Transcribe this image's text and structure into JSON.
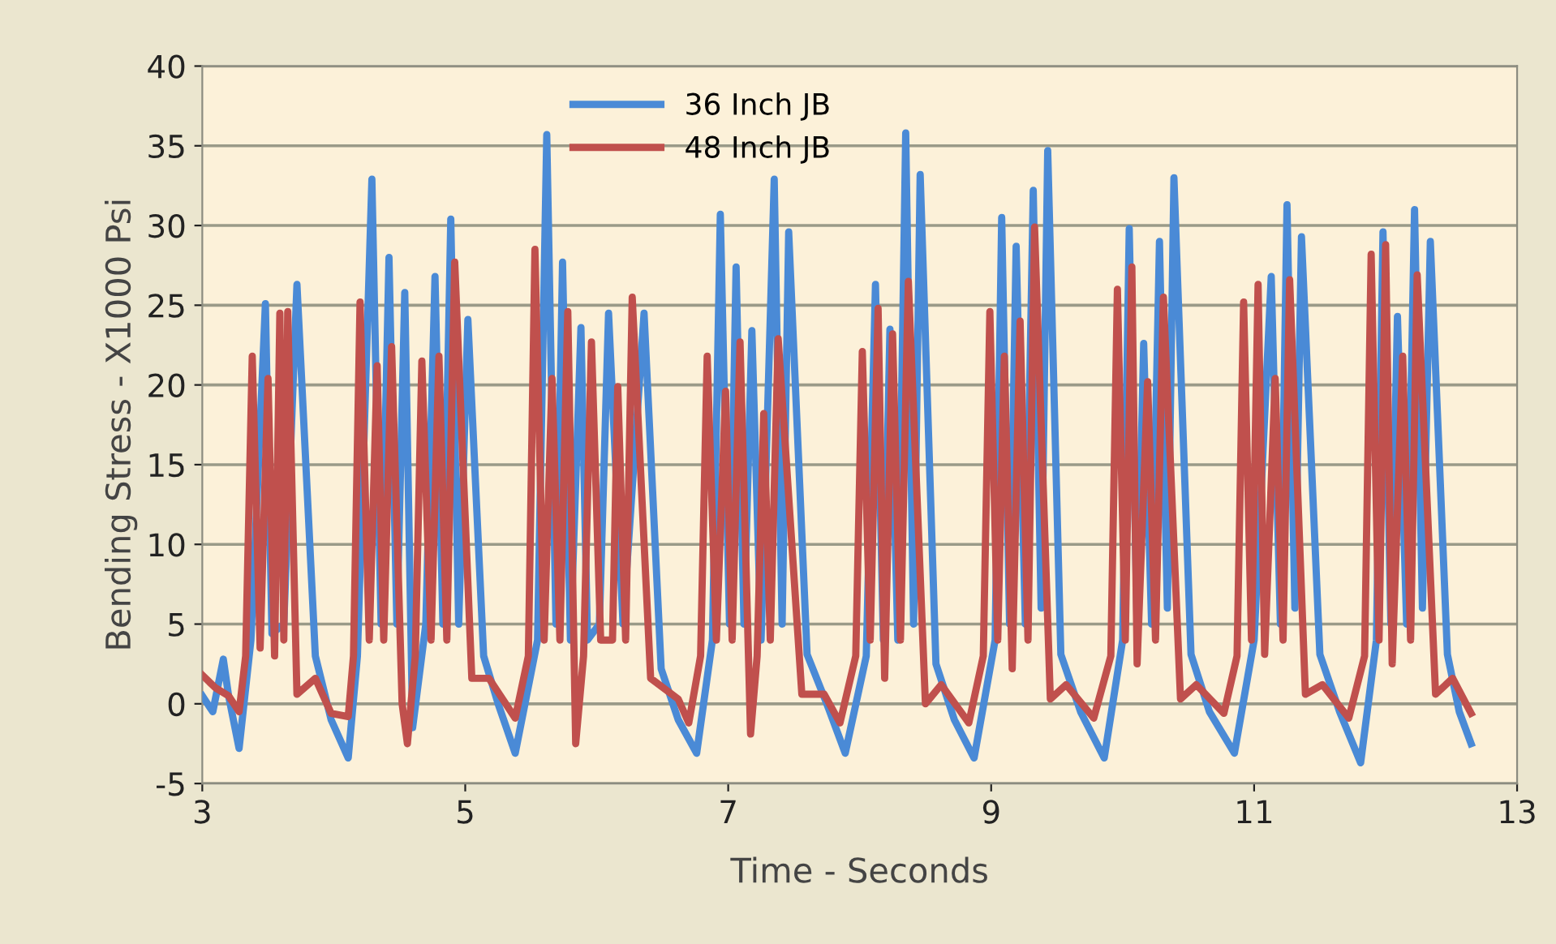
{
  "chart_data": {
    "type": "line",
    "xlabel": "Time - Seconds",
    "ylabel": "Bending Stress - X1000 Psi",
    "xlim": [
      3,
      13
    ],
    "xticks": [
      3,
      5,
      7,
      9,
      11,
      13
    ],
    "ylim": [
      -5,
      40
    ],
    "yticks": [
      -5,
      0,
      5,
      10,
      15,
      20,
      25,
      30,
      35,
      40
    ],
    "grid": "y",
    "legend": "top",
    "line_style": "solid",
    "marker": "none",
    "series": [
      {
        "name": "36 Inch JB",
        "color": "#4a8ad6",
        "x": [
          3.0,
          3.08,
          3.16,
          3.2,
          3.28,
          3.37,
          3.48,
          3.53,
          3.62,
          3.72,
          3.86,
          3.98,
          4.11,
          4.18,
          4.29,
          4.36,
          4.42,
          4.48,
          4.54,
          4.6,
          4.7,
          4.77,
          4.83,
          4.89,
          4.95,
          5.02,
          5.14,
          5.25,
          5.38,
          5.55,
          5.62,
          5.69,
          5.74,
          5.8,
          5.88,
          5.93,
          6.02,
          6.09,
          6.2,
          6.36,
          6.49,
          6.62,
          6.76,
          6.88,
          6.94,
          7.01,
          7.06,
          7.12,
          7.18,
          7.25,
          7.35,
          7.41,
          7.46,
          7.6,
          7.75,
          7.89,
          8.05,
          8.12,
          8.18,
          8.23,
          8.29,
          8.35,
          8.41,
          8.46,
          8.58,
          8.72,
          8.87,
          9.03,
          9.08,
          9.14,
          9.19,
          9.26,
          9.32,
          9.38,
          9.43,
          9.53,
          9.68,
          9.86,
          10.0,
          10.05,
          10.11,
          10.16,
          10.22,
          10.28,
          10.34,
          10.39,
          10.52,
          10.66,
          10.85,
          11.0,
          11.13,
          11.2,
          11.25,
          11.31,
          11.36,
          11.5,
          11.65,
          11.81,
          11.93,
          11.98,
          12.04,
          12.09,
          12.16,
          12.22,
          12.28,
          12.34,
          12.47,
          12.56,
          12.65
        ],
        "values": [
          0.5,
          -0.5,
          2.8,
          0.5,
          -2.8,
          4,
          25.1,
          4.4,
          5,
          26.3,
          3,
          -1,
          -3.4,
          3,
          32.9,
          5,
          28.0,
          5,
          25.8,
          -1.5,
          5,
          26.8,
          5,
          30.4,
          5,
          24.1,
          3,
          0,
          -3.1,
          4,
          35.7,
          5,
          27.7,
          4,
          23.6,
          4,
          5,
          24.5,
          5,
          24.5,
          2.2,
          -1,
          -3.1,
          4,
          30.7,
          5,
          27.4,
          5,
          23.4,
          4,
          32.9,
          5,
          29.6,
          3.1,
          0,
          -3.1,
          3,
          26.3,
          4,
          23.5,
          4,
          35.8,
          5,
          33.2,
          2.5,
          -1,
          -3.4,
          4,
          30.5,
          5,
          28.7,
          5,
          32.2,
          6,
          34.7,
          3.1,
          -0.5,
          -3.4,
          4,
          29.8,
          5,
          22.6,
          5,
          29.0,
          6,
          33.0,
          3.1,
          -0.5,
          -3.1,
          4,
          26.8,
          5,
          31.3,
          6,
          29.3,
          3.1,
          -0.5,
          -3.7,
          4,
          29.6,
          5,
          24.3,
          5,
          31.0,
          6,
          29.0,
          3.1,
          -0.5,
          -2.5
        ]
      },
      {
        "name": "48 Inch JB",
        "color": "#c0504d",
        "x": [
          3.0,
          3.1,
          3.2,
          3.28,
          3.33,
          3.38,
          3.44,
          3.5,
          3.55,
          3.59,
          3.62,
          3.65,
          3.72,
          3.86,
          3.98,
          4.11,
          4.15,
          4.2,
          4.27,
          4.33,
          4.38,
          4.44,
          4.52,
          4.56,
          4.62,
          4.67,
          4.74,
          4.8,
          4.86,
          4.92,
          5.05,
          5.18,
          5.38,
          5.48,
          5.53,
          5.6,
          5.66,
          5.72,
          5.78,
          5.84,
          5.9,
          5.96,
          6.03,
          6.12,
          6.16,
          6.22,
          6.27,
          6.41,
          6.62,
          6.7,
          6.79,
          6.84,
          6.91,
          6.98,
          7.03,
          7.09,
          7.17,
          7.22,
          7.27,
          7.32,
          7.38,
          7.56,
          7.73,
          7.85,
          7.97,
          8.02,
          8.08,
          8.14,
          8.19,
          8.25,
          8.31,
          8.37,
          8.5,
          8.62,
          8.83,
          8.94,
          8.99,
          9.05,
          9.1,
          9.16,
          9.22,
          9.28,
          9.33,
          9.45,
          9.57,
          9.78,
          9.91,
          9.96,
          10.02,
          10.07,
          10.11,
          10.19,
          10.25,
          10.31,
          10.44,
          10.56,
          10.77,
          10.87,
          10.92,
          10.98,
          11.03,
          11.08,
          11.16,
          11.22,
          11.27,
          11.39,
          11.52,
          11.72,
          11.84,
          11.89,
          11.95,
          12.0,
          12.05,
          12.13,
          12.19,
          12.24,
          12.38,
          12.51,
          12.65
        ],
        "values": [
          1.8,
          1,
          0.5,
          -0.5,
          3,
          21.8,
          3.5,
          20.4,
          3,
          24.5,
          4,
          24.6,
          0.6,
          1.6,
          -0.6,
          -0.8,
          3,
          25.2,
          4,
          21.2,
          4,
          22.4,
          0,
          -2.5,
          3,
          21.5,
          4,
          21.8,
          4,
          27.7,
          1.6,
          1.6,
          -0.9,
          3,
          28.5,
          4,
          20.4,
          4,
          24.6,
          -2.5,
          3,
          22.7,
          4,
          4,
          19.9,
          4,
          25.5,
          1.6,
          0.3,
          -1.2,
          3,
          21.8,
          4,
          19.6,
          4,
          22.7,
          -1.9,
          3,
          18.2,
          4,
          22.9,
          0.6,
          0.6,
          -1.2,
          3,
          22.1,
          4,
          24.8,
          1.6,
          23.2,
          4,
          26.5,
          0,
          1.2,
          -1.2,
          3,
          24.6,
          4,
          21.8,
          2.2,
          24.0,
          4,
          29.9,
          0.3,
          1.2,
          -0.9,
          3,
          26.0,
          4,
          27.4,
          2.5,
          20.2,
          4,
          25.5,
          0.3,
          1.2,
          -0.6,
          3,
          25.2,
          4,
          26.3,
          3.1,
          20.4,
          4,
          26.6,
          0.6,
          1.2,
          -0.9,
          3,
          28.2,
          4,
          28.8,
          2.5,
          21.8,
          4,
          26.9,
          0.6,
          1.6,
          -0.6
        ]
      }
    ]
  }
}
